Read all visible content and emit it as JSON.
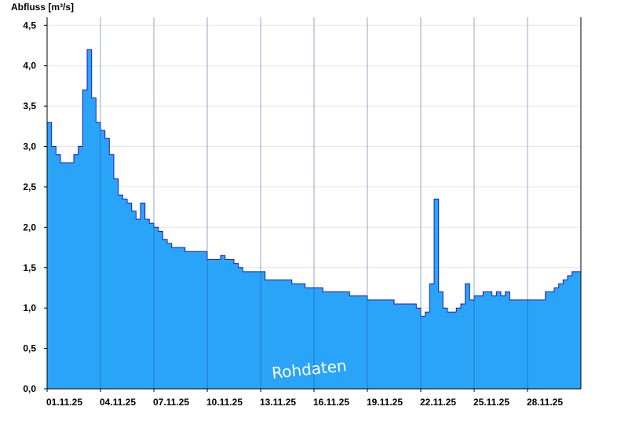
{
  "chart_data": {
    "type": "area",
    "ylabel": "Abfluss [m³/s]",
    "ylim": [
      0,
      4.6
    ],
    "yticks": [
      0,
      0.5,
      1.0,
      1.5,
      2.0,
      2.5,
      3.0,
      3.5,
      4.0,
      4.5
    ],
    "ytick_labels": [
      "0,0",
      "0,5",
      "1,0",
      "1,5",
      "2,0",
      "2,5",
      "3,0",
      "3,5",
      "4,0",
      "4,5"
    ],
    "xlim": [
      "2025-11-01",
      "2025-12-01"
    ],
    "x_ticks": [
      "2025-11-01",
      "2025-11-04",
      "2025-11-07",
      "2025-11-10",
      "2025-11-13",
      "2025-11-16",
      "2025-11-19",
      "2025-11-22",
      "2025-11-25",
      "2025-11-28"
    ],
    "x_tick_labels": [
      "01.11.25",
      "04.11.25",
      "07.11.25",
      "10.11.25",
      "13.11.25",
      "16.11.25",
      "19.11.25",
      "22.11.25",
      "25.11.25",
      "28.11.25"
    ],
    "grid": true,
    "watermark": "Rohdaten",
    "fill_color": "#2aa4f8",
    "line_color": "#1a1ac8",
    "series": [
      {
        "x": [
          "2025-11-01 00:00",
          "2025-11-01 06:00",
          "2025-11-01 12:00",
          "2025-11-01 18:00",
          "2025-11-02 00:00",
          "2025-11-02 06:00",
          "2025-11-02 12:00",
          "2025-11-02 18:00",
          "2025-11-03 00:00",
          "2025-11-03 06:00",
          "2025-11-03 12:00",
          "2025-11-03 18:00",
          "2025-11-04 00:00",
          "2025-11-04 06:00",
          "2025-11-04 12:00",
          "2025-11-04 18:00",
          "2025-11-05 00:00",
          "2025-11-05 06:00",
          "2025-11-05 12:00",
          "2025-11-05 18:00",
          "2025-11-06 00:00",
          "2025-11-06 06:00",
          "2025-11-06 12:00",
          "2025-11-06 18:00",
          "2025-11-07 00:00",
          "2025-11-07 06:00",
          "2025-11-07 12:00",
          "2025-11-07 18:00",
          "2025-11-08 00:00",
          "2025-11-08 06:00",
          "2025-11-08 12:00",
          "2025-11-08 18:00",
          "2025-11-09 00:00",
          "2025-11-09 06:00",
          "2025-11-09 12:00",
          "2025-11-09 18:00",
          "2025-11-10 00:00",
          "2025-11-10 06:00",
          "2025-11-10 12:00",
          "2025-11-10 18:00",
          "2025-11-11 00:00",
          "2025-11-11 06:00",
          "2025-11-11 12:00",
          "2025-11-11 18:00",
          "2025-11-12 00:00",
          "2025-11-12 06:00",
          "2025-11-12 12:00",
          "2025-11-12 18:00",
          "2025-11-13 00:00",
          "2025-11-13 06:00",
          "2025-11-13 12:00",
          "2025-11-13 18:00",
          "2025-11-14 00:00",
          "2025-11-14 06:00",
          "2025-11-14 12:00",
          "2025-11-14 18:00",
          "2025-11-15 00:00",
          "2025-11-15 06:00",
          "2025-11-15 12:00",
          "2025-11-15 18:00",
          "2025-11-16 00:00",
          "2025-11-16 06:00",
          "2025-11-16 12:00",
          "2025-11-16 18:00",
          "2025-11-17 00:00",
          "2025-11-17 06:00",
          "2025-11-17 12:00",
          "2025-11-17 18:00",
          "2025-11-18 00:00",
          "2025-11-18 06:00",
          "2025-11-18 12:00",
          "2025-11-18 18:00",
          "2025-11-19 00:00",
          "2025-11-19 06:00",
          "2025-11-19 12:00",
          "2025-11-19 18:00",
          "2025-11-20 00:00",
          "2025-11-20 06:00",
          "2025-11-20 12:00",
          "2025-11-20 18:00",
          "2025-11-21 00:00",
          "2025-11-21 06:00",
          "2025-11-21 12:00",
          "2025-11-21 18:00",
          "2025-11-22 00:00",
          "2025-11-22 06:00",
          "2025-11-22 12:00",
          "2025-11-22 18:00",
          "2025-11-23 00:00",
          "2025-11-23 06:00",
          "2025-11-23 12:00",
          "2025-11-23 18:00",
          "2025-11-24 00:00",
          "2025-11-24 06:00",
          "2025-11-24 12:00",
          "2025-11-24 18:00",
          "2025-11-25 00:00",
          "2025-11-25 06:00",
          "2025-11-25 12:00",
          "2025-11-25 18:00",
          "2025-11-26 00:00",
          "2025-11-26 06:00",
          "2025-11-26 12:00",
          "2025-11-26 18:00",
          "2025-11-27 00:00",
          "2025-11-27 06:00",
          "2025-11-27 12:00",
          "2025-11-27 18:00",
          "2025-11-28 00:00",
          "2025-11-28 06:00",
          "2025-11-28 12:00",
          "2025-11-28 18:00",
          "2025-11-29 00:00",
          "2025-11-29 06:00",
          "2025-11-29 12:00",
          "2025-11-29 18:00",
          "2025-11-30 00:00",
          "2025-11-30 06:00",
          "2025-11-30 12:00",
          "2025-11-30 18:00",
          "2025-12-01 00:00"
        ],
        "y": [
          3.3,
          3.0,
          2.9,
          2.8,
          2.8,
          2.8,
          2.9,
          3.0,
          3.7,
          4.2,
          3.6,
          3.3,
          3.2,
          3.1,
          2.9,
          2.6,
          2.4,
          2.35,
          2.3,
          2.2,
          2.1,
          2.3,
          2.1,
          2.05,
          2.0,
          1.95,
          1.85,
          1.8,
          1.75,
          1.75,
          1.75,
          1.7,
          1.7,
          1.7,
          1.7,
          1.7,
          1.6,
          1.6,
          1.6,
          1.65,
          1.6,
          1.6,
          1.55,
          1.5,
          1.45,
          1.45,
          1.45,
          1.45,
          1.45,
          1.35,
          1.35,
          1.35,
          1.35,
          1.35,
          1.35,
          1.3,
          1.3,
          1.3,
          1.25,
          1.25,
          1.25,
          1.25,
          1.2,
          1.2,
          1.2,
          1.2,
          1.2,
          1.2,
          1.15,
          1.15,
          1.15,
          1.15,
          1.1,
          1.1,
          1.1,
          1.1,
          1.1,
          1.1,
          1.05,
          1.05,
          1.05,
          1.05,
          1.05,
          1.0,
          0.9,
          0.95,
          1.3,
          2.35,
          1.2,
          1.0,
          0.95,
          0.95,
          1.0,
          1.05,
          1.3,
          1.1,
          1.15,
          1.15,
          1.2,
          1.2,
          1.15,
          1.2,
          1.15,
          1.2,
          1.1,
          1.1,
          1.1,
          1.1,
          1.1,
          1.1,
          1.1,
          1.1,
          1.2,
          1.2,
          1.25,
          1.3,
          1.35,
          1.4,
          1.45,
          1.45,
          1.45
        ]
      }
    ]
  }
}
